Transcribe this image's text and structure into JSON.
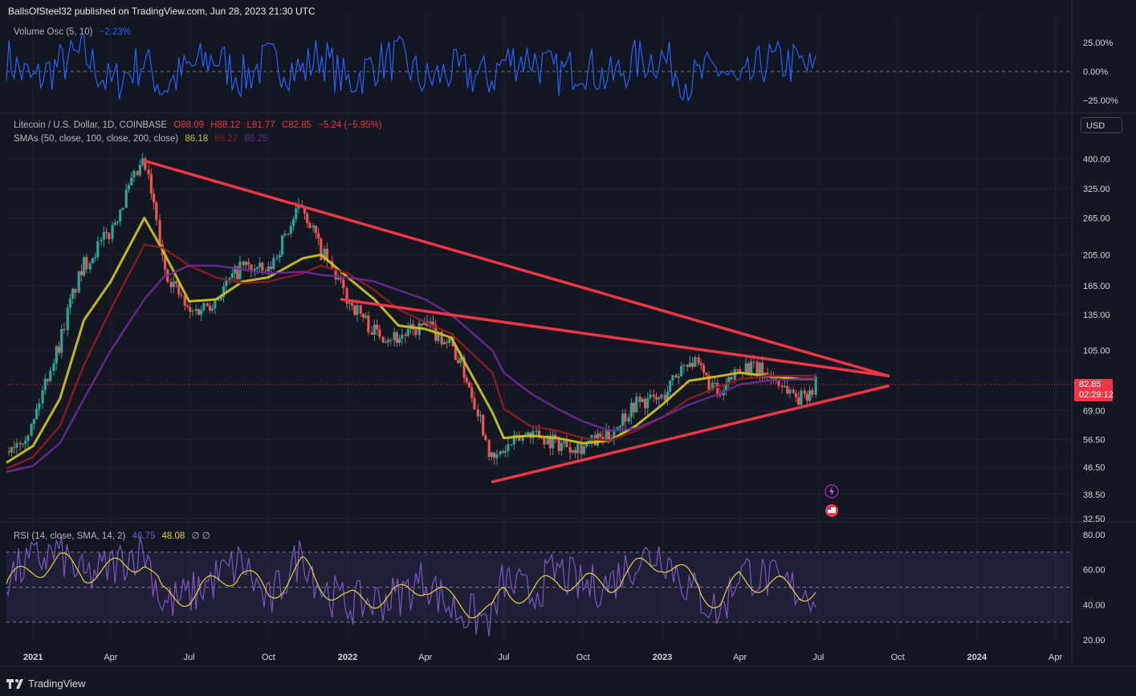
{
  "header": {
    "publisher": "BallsOfSteel32 published on TradingView.com, Jun 28, 2023 21:30 UTC"
  },
  "volume_osc": {
    "label": "Volume Osc (5, 10)",
    "value": "−2.23%",
    "color": "#2962ff",
    "ticks": [
      "25.00%",
      "0.00%",
      "−25.00%"
    ]
  },
  "main_legend": {
    "symbol": "Litecoin / U.S. Dollar, 1D, COINBASE",
    "o": "O88.09",
    "h": "H88.12",
    "l": "L81.77",
    "c": "C82.85",
    "change": "−5.24 (−5.95%)",
    "sma_label": "SMAs (50, close, 100, close, 200, close)",
    "sma50": "86.18",
    "sma100": "88.27",
    "sma200": "86.25",
    "currency": "USD"
  },
  "price_tag": {
    "price": "82.85",
    "countdown": "02:29:12",
    "color": "#f23645"
  },
  "rsi": {
    "label": "RSI (14, close, SMA, 14, 2)",
    "value": "46.75",
    "sma_value": "48.08",
    "extra": "∅ ∅",
    "ticks": [
      "80.00",
      "60.00",
      "40.00",
      "20.00"
    ]
  },
  "footer": {
    "brand": "TradingView",
    "logo_icon": "tradingview-logo-icon"
  },
  "event_icons": [
    "lightning-icon",
    "us-flag-icon"
  ],
  "chart_data": {
    "type": "line",
    "title": "Litecoin / U.S. Dollar, 1D, COINBASE",
    "xlabel": "",
    "ylabel": "",
    "y_scale": "log",
    "ylim": [
      32.5,
      420
    ],
    "grid": true,
    "x_ticks": [
      "2021",
      "Apr",
      "Jul",
      "Oct",
      "2022",
      "Apr",
      "Jul",
      "Oct",
      "2023",
      "Apr",
      "Jul",
      "Oct",
      "2024",
      "Apr"
    ],
    "y_ticks": [
      "400.00",
      "325.00",
      "265.00",
      "205.00",
      "165.00",
      "135.00",
      "105.00",
      "82.85",
      "69.00",
      "56.50",
      "46.50",
      "38.50",
      "32.50"
    ],
    "x": [
      "2020-12-01",
      "2021-01-01",
      "2021-02-01",
      "2021-03-01",
      "2021-04-01",
      "2021-05-10",
      "2021-06-01",
      "2021-07-01",
      "2021-08-01",
      "2021-09-01",
      "2021-10-01",
      "2021-11-10",
      "2021-12-01",
      "2022-01-01",
      "2022-02-01",
      "2022-03-01",
      "2022-04-01",
      "2022-05-01",
      "2022-06-18",
      "2022-07-01",
      "2022-08-01",
      "2022-09-01",
      "2022-10-01",
      "2022-11-01",
      "2022-12-01",
      "2023-01-01",
      "2023-02-01",
      "2023-03-10",
      "2023-04-01",
      "2023-05-01",
      "2023-06-10",
      "2023-06-28"
    ],
    "series": [
      {
        "name": "Price",
        "color": "#26a69a",
        "values": [
          52,
          62,
          110,
          190,
          240,
          390,
          190,
          135,
          150,
          190,
          180,
          290,
          210,
          150,
          120,
          115,
          125,
          110,
          48,
          52,
          60,
          55,
          54,
          58,
          73,
          75,
          100,
          75,
          95,
          90,
          75,
          82.85
        ]
      },
      {
        "name": "SMA 50",
        "color": "#c9c019",
        "values": [
          48,
          54,
          75,
          130,
          170,
          265,
          210,
          148,
          150,
          170,
          175,
          200,
          205,
          175,
          150,
          125,
          122,
          115,
          68,
          57,
          58,
          57,
          55,
          56,
          62,
          72,
          85,
          88,
          90,
          88,
          86,
          86.18
        ]
      },
      {
        "name": "SMA 100",
        "color": "#8b1c25",
        "values": [
          46,
          50,
          62,
          95,
          140,
          220,
          215,
          190,
          175,
          168,
          170,
          180,
          190,
          180,
          160,
          140,
          128,
          118,
          90,
          70,
          62,
          60,
          57,
          56,
          60,
          66,
          75,
          82,
          86,
          88,
          88,
          88.27
        ]
      },
      {
        "name": "SMA 200",
        "color": "#6b2a8f",
        "values": [
          45,
          47,
          55,
          75,
          105,
          150,
          175,
          190,
          190,
          185,
          180,
          182,
          178,
          175,
          170,
          160,
          150,
          135,
          105,
          90,
          78,
          70,
          64,
          60,
          61,
          66,
          72,
          78,
          83,
          85,
          86,
          86.25
        ]
      }
    ],
    "trendlines": [
      {
        "from": [
          "2021-05-10",
          395
        ],
        "to": [
          "2023-09-20",
          88
        ]
      },
      {
        "from": [
          "2021-12-25",
          150
        ],
        "to": [
          "2023-09-20",
          88
        ]
      },
      {
        "from": [
          "2022-06-18",
          42
        ],
        "to": [
          "2023-09-20",
          82
        ]
      }
    ],
    "rsi_panel": {
      "ylim": [
        20,
        80
      ],
      "bands": [
        70,
        50,
        30
      ],
      "rsi_values": [
        55,
        65,
        70,
        55,
        62,
        72,
        40,
        45,
        55,
        65,
        40,
        70,
        50,
        40,
        42,
        45,
        55,
        38,
        30,
        55,
        45,
        60,
        50,
        52,
        65,
        70,
        50,
        35,
        60,
        55,
        48,
        46.75
      ],
      "rsi_sma_values": [
        52,
        60,
        65,
        58,
        60,
        66,
        45,
        45,
        52,
        60,
        45,
        62,
        52,
        42,
        44,
        45,
        52,
        42,
        35,
        48,
        46,
        55,
        52,
        52,
        60,
        65,
        55,
        40,
        55,
        52,
        48,
        48.08
      ]
    },
    "volume_osc_panel": {
      "ylim": [
        -35,
        35
      ],
      "values": [
        20,
        -15,
        10,
        25,
        -20,
        15,
        -25,
        5,
        20,
        -10,
        15,
        0,
        25,
        -18,
        10,
        20,
        -15,
        0,
        -10,
        15,
        20,
        -5,
        10,
        -12,
        15,
        20,
        -15,
        5,
        -25,
        15,
        10,
        -2.23
      ]
    }
  }
}
